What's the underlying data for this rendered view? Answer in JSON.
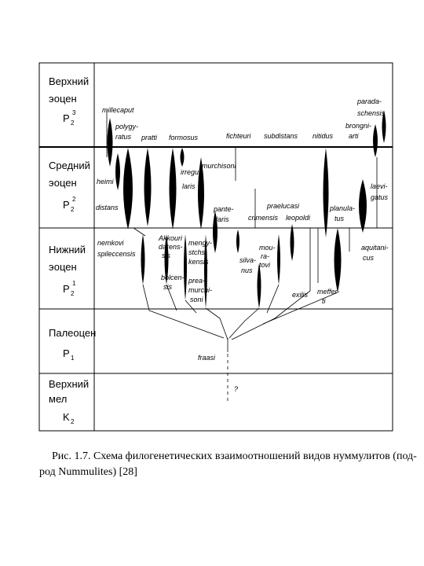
{
  "epochs": [
    {
      "name": [
        "Верхний",
        "эоцен"
      ],
      "symbol": "P",
      "sup": "3",
      "sub": "2"
    },
    {
      "name": [
        "Средний",
        "эоцен"
      ],
      "symbol": "P",
      "sup": "2",
      "sub": "2"
    },
    {
      "name": [
        "Нижний",
        "эоцен"
      ],
      "symbol": "P",
      "sup": "1",
      "sub": "2"
    },
    {
      "name": [
        "Палеоцен"
      ],
      "symbol": "P",
      "sub": "1"
    },
    {
      "name": [
        "Верхний",
        "мел"
      ],
      "symbol": "K",
      "sub": "2"
    }
  ],
  "species": [
    "millecaput",
    "polygy-",
    "ratus",
    "pratti",
    "formosus",
    "fichteuri",
    "subdistans",
    "nitidus",
    "parada-",
    "schensis",
    "brongni-",
    "arti",
    "heimi",
    "distans",
    "irregu-",
    "laris",
    "murchisoni",
    "pante-",
    "laris",
    "praelucasi",
    "crimensis",
    "leopoldi",
    "planula-",
    "tus",
    "laevi-",
    "gatus",
    "nemkovi",
    "spileccensis",
    "Akkouri",
    "darens-",
    "sis",
    "mengy-",
    "stchs-",
    "kensis",
    "silva-",
    "nus",
    "mou-",
    "ra-",
    "tovi",
    "aquitani-",
    "cus",
    "bolcen-",
    "sis",
    "prea-",
    "murchi-",
    "soni",
    "exilis",
    "meffer-",
    "ti",
    "fraasi",
    "?"
  ],
  "caption": [
    "Рис. 1.7. Схема филогенетических взаимоотношений видов нуммулитов (под-",
    "род Nummulites) [28]"
  ]
}
